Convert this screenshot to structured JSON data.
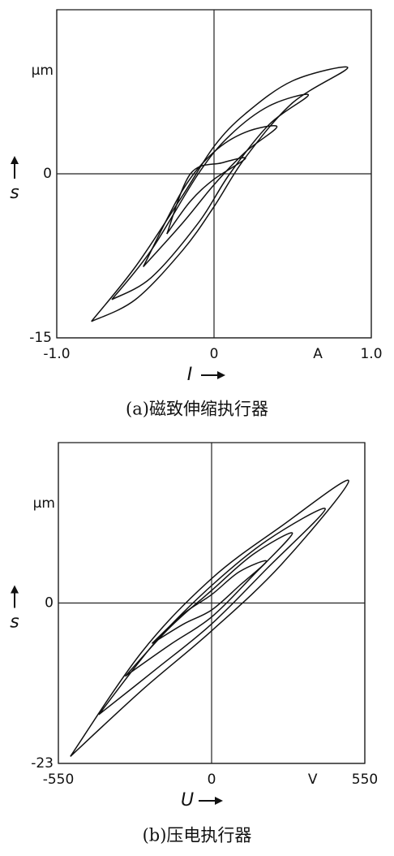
{
  "chart_data": [
    {
      "type": "line",
      "caption": "(a)磁致伸缩执行器",
      "xlabel": "I",
      "ylabel": "s",
      "x_unit": "A",
      "y_unit": "μm",
      "xlim": [
        -1.0,
        1.0
      ],
      "ylim": [
        -15,
        15
      ],
      "xticks": [
        {
          "value": -1.0,
          "label": "-1.0"
        },
        0,
        {
          "value": 1.0,
          "label": "1.0"
        }
      ],
      "yticks": [
        -15,
        0
      ],
      "grid": true,
      "series": [
        {
          "color": "#111111",
          "x": [
            -0.78,
            -0.5,
            -0.2,
            0,
            0.2,
            0.5,
            0.85,
            0.5,
            0.2,
            0,
            -0.2,
            -0.5,
            -0.78
          ],
          "values": [
            -13.5,
            -11.5,
            -7,
            -3,
            1.5,
            6.5,
            9.7,
            8.5,
            5.5,
            2.5,
            -2,
            -8.5,
            -13.5
          ]
        },
        {
          "color": "#111111",
          "x": [
            -0.65,
            -0.4,
            -0.1,
            0.1,
            0.35,
            0.6,
            0.35,
            0.1,
            -0.1,
            -0.4,
            -0.65
          ],
          "values": [
            -11.5,
            -9.5,
            -4.5,
            0,
            4.5,
            7.2,
            6.2,
            3.5,
            0,
            -7,
            -11.5
          ]
        },
        {
          "color": "#111111",
          "x": [
            -0.45,
            -0.2,
            0,
            0.2,
            0.4,
            0.2,
            0,
            -0.2,
            -0.45
          ],
          "values": [
            -8.5,
            -4.5,
            -1,
            2,
            4.3,
            3.8,
            2,
            -1.5,
            -8.5
          ]
        },
        {
          "color": "#111111",
          "x": [
            -0.3,
            -0.15,
            0,
            0.2,
            0.05,
            -0.15,
            -0.3
          ],
          "values": [
            -5.5,
            -2.5,
            -0.5,
            1.4,
            1,
            0,
            -5.5
          ]
        }
      ]
    },
    {
      "type": "line",
      "caption": "(b)压电执行器",
      "xlabel": "U",
      "ylabel": "s",
      "x_unit": "V",
      "y_unit": "μm",
      "xlim": [
        -550,
        550
      ],
      "ylim": [
        -23,
        23
      ],
      "xticks": [
        -550,
        0,
        550
      ],
      "yticks": [
        -23,
        0
      ],
      "grid": true,
      "series": [
        {
          "color": "#111111",
          "x": [
            -507,
            -250,
            0,
            250,
            492,
            250,
            0,
            -250,
            -507
          ],
          "values": [
            -22,
            -12.5,
            -4,
            5.5,
            17.5,
            11,
            3.5,
            -7,
            -22
          ]
        },
        {
          "color": "#111111",
          "x": [
            -405,
            -200,
            0,
            200,
            408,
            200,
            0,
            -200,
            -405
          ],
          "values": [
            -16,
            -9.5,
            -3,
            5,
            13.5,
            9,
            2.5,
            -5.5,
            -16
          ]
        },
        {
          "color": "#111111",
          "x": [
            -310,
            -150,
            0,
            150,
            290,
            150,
            0,
            -150,
            -310
          ],
          "values": [
            -10.5,
            -6,
            -2,
            4,
            10,
            7,
            1.8,
            -3.5,
            -10.5
          ]
        },
        {
          "color": "#111111",
          "x": [
            -214,
            -100,
            0,
            100,
            197,
            100,
            0,
            -100,
            -214
          ],
          "values": [
            -5.8,
            -3,
            -1,
            2.5,
            6,
            4.5,
            1.2,
            -1.5,
            -5.8
          ]
        }
      ]
    }
  ]
}
